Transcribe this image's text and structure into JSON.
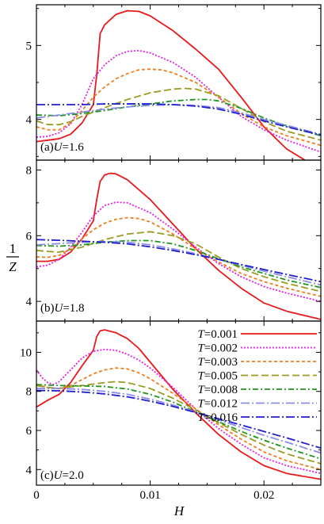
{
  "figure": {
    "xlabel": "H",
    "ylabel_numerator": "1",
    "ylabel_denominator": "Z"
  },
  "chart_data": [
    {
      "type": "line",
      "panel_label": "(a) U=1.6",
      "panel_prefix": "(a)",
      "panel_var": "U",
      "panel_value": "=1.6",
      "xlim": [
        0,
        0.025
      ],
      "ylim": [
        3.45,
        5.55
      ],
      "xticks": [
        0,
        0.01,
        0.02
      ],
      "xtick_labels": [
        "",
        "",
        ""
      ],
      "yticks": [
        4,
        5
      ],
      "ytick_labels": [
        "4",
        "5"
      ],
      "grid": false,
      "series": [
        {
          "name": "T=0.001",
          "color": "#e8191b",
          "dash": "",
          "x": [
            0,
            0.001,
            0.002,
            0.003,
            0.004,
            0.005,
            0.0053,
            0.0056,
            0.006,
            0.007,
            0.008,
            0.009,
            0.01,
            0.012,
            0.014,
            0.016,
            0.018,
            0.02,
            0.022,
            0.025
          ],
          "y": [
            3.7,
            3.72,
            3.74,
            3.8,
            3.95,
            4.2,
            4.6,
            5.16,
            5.28,
            5.42,
            5.47,
            5.46,
            5.4,
            5.2,
            4.95,
            4.68,
            4.3,
            3.9,
            3.6,
            3.32
          ]
        },
        {
          "name": "T=0.002",
          "color": "#e61ee6",
          "dash": "2,2",
          "x": [
            0,
            0.001,
            0.002,
            0.003,
            0.004,
            0.005,
            0.006,
            0.007,
            0.008,
            0.009,
            0.01,
            0.012,
            0.014,
            0.016,
            0.018,
            0.02,
            0.022,
            0.025
          ],
          "y": [
            3.76,
            3.77,
            3.82,
            3.94,
            4.2,
            4.55,
            4.74,
            4.86,
            4.92,
            4.93,
            4.9,
            4.77,
            4.57,
            4.3,
            4.04,
            3.86,
            3.72,
            3.56
          ]
        },
        {
          "name": "T=0.003",
          "color": "#f07d19",
          "dash": "4,3",
          "x": [
            0,
            0.001,
            0.002,
            0.003,
            0.004,
            0.005,
            0.006,
            0.007,
            0.008,
            0.009,
            0.01,
            0.011,
            0.012,
            0.014,
            0.016,
            0.018,
            0.02,
            0.022,
            0.025
          ],
          "y": [
            3.9,
            3.86,
            3.86,
            3.95,
            4.12,
            4.3,
            4.44,
            4.55,
            4.62,
            4.67,
            4.68,
            4.67,
            4.63,
            4.5,
            4.3,
            4.08,
            3.9,
            3.78,
            3.65
          ]
        },
        {
          "name": "T=0.005",
          "color": "#9b9b23",
          "dash": "9,4",
          "x": [
            0,
            0.001,
            0.002,
            0.003,
            0.004,
            0.006,
            0.008,
            0.01,
            0.012,
            0.013,
            0.014,
            0.016,
            0.018,
            0.02,
            0.022,
            0.025
          ],
          "y": [
            3.98,
            3.93,
            3.93,
            3.97,
            4.04,
            4.16,
            4.27,
            4.36,
            4.41,
            4.42,
            4.41,
            4.32,
            4.15,
            3.97,
            3.84,
            3.72
          ]
        },
        {
          "name": "T=0.008",
          "color": "#1e961e",
          "dash": "7,3,2,3",
          "x": [
            0,
            0.002,
            0.004,
            0.006,
            0.008,
            0.01,
            0.012,
            0.014,
            0.015,
            0.016,
            0.018,
            0.02,
            0.022,
            0.025
          ],
          "y": [
            4.06,
            4.05,
            4.08,
            4.12,
            4.17,
            4.21,
            4.25,
            4.27,
            4.27,
            4.25,
            4.15,
            4.02,
            3.91,
            3.78
          ]
        },
        {
          "name": "T=0.012",
          "color": "#8c8ce6",
          "dash": "11,3,2,3",
          "x": [
            0,
            0.002,
            0.004,
            0.006,
            0.008,
            0.01,
            0.012,
            0.014,
            0.016,
            0.018,
            0.02,
            0.022,
            0.025
          ],
          "y": [
            4.02,
            4.06,
            4.1,
            4.14,
            4.17,
            4.19,
            4.2,
            4.19,
            4.16,
            4.09,
            4.0,
            3.92,
            3.8
          ]
        },
        {
          "name": "T=0.016",
          "color": "#1e1ed2",
          "dash": "11,3,2,3",
          "x": [
            0,
            0.002,
            0.004,
            0.006,
            0.008,
            0.01,
            0.012,
            0.014,
            0.016,
            0.018,
            0.02,
            0.022,
            0.025
          ],
          "y": [
            4.2,
            4.2,
            4.2,
            4.21,
            4.21,
            4.21,
            4.2,
            4.18,
            4.14,
            4.07,
            3.98,
            3.9,
            3.79
          ]
        }
      ]
    },
    {
      "type": "line",
      "panel_label": "(b) U=1.8",
      "panel_prefix": "(b)",
      "panel_var": "U",
      "panel_value": "=1.8",
      "xlim": [
        0,
        0.025
      ],
      "ylim": [
        3.4,
        8.3
      ],
      "xticks": [
        0,
        0.01,
        0.02
      ],
      "xtick_labels": [
        "",
        "",
        ""
      ],
      "yticks": [
        4,
        6,
        8
      ],
      "ytick_labels": [
        "4",
        "6",
        "8"
      ],
      "grid": false,
      "series": [
        {
          "name": "T=0.001",
          "color": "#e8191b",
          "dash": "",
          "x": [
            0,
            0.001,
            0.002,
            0.003,
            0.004,
            0.005,
            0.0053,
            0.0056,
            0.006,
            0.0065,
            0.007,
            0.008,
            0.01,
            0.012,
            0.014,
            0.016,
            0.018,
            0.02,
            0.022,
            0.025
          ],
          "y": [
            5.22,
            5.22,
            5.28,
            5.5,
            5.9,
            6.45,
            7.1,
            7.65,
            7.85,
            7.9,
            7.88,
            7.7,
            7.1,
            6.35,
            5.6,
            4.95,
            4.4,
            3.95,
            3.7,
            3.45
          ]
        },
        {
          "name": "T=0.002",
          "color": "#e61ee6",
          "dash": "2,2",
          "x": [
            0,
            0.001,
            0.002,
            0.003,
            0.004,
            0.005,
            0.006,
            0.007,
            0.008,
            0.01,
            0.012,
            0.014,
            0.016,
            0.018,
            0.02,
            0.022,
            0.025
          ],
          "y": [
            5.05,
            5.1,
            5.28,
            5.65,
            6.1,
            6.6,
            6.92,
            7.02,
            7.0,
            6.7,
            6.2,
            5.65,
            5.15,
            4.75,
            4.45,
            4.25,
            4.0
          ]
        },
        {
          "name": "T=0.003",
          "color": "#f07d19",
          "dash": "4,3",
          "x": [
            0,
            0.001,
            0.002,
            0.003,
            0.004,
            0.005,
            0.006,
            0.007,
            0.008,
            0.009,
            0.01,
            0.012,
            0.014,
            0.016,
            0.018,
            0.02,
            0.022,
            0.025
          ],
          "y": [
            5.35,
            5.34,
            5.4,
            5.6,
            5.9,
            6.18,
            6.38,
            6.5,
            6.55,
            6.52,
            6.42,
            6.05,
            5.6,
            5.2,
            4.85,
            4.6,
            4.4,
            4.15
          ]
        },
        {
          "name": "T=0.005",
          "color": "#9b9b23",
          "dash": "9,4",
          "x": [
            0,
            0.001,
            0.002,
            0.004,
            0.006,
            0.008,
            0.01,
            0.012,
            0.014,
            0.016,
            0.018,
            0.02,
            0.022,
            0.025
          ],
          "y": [
            5.55,
            5.52,
            5.5,
            5.65,
            5.88,
            6.05,
            6.12,
            6.0,
            5.75,
            5.35,
            5.0,
            4.75,
            4.55,
            4.3
          ]
        },
        {
          "name": "T=0.008",
          "color": "#1e961e",
          "dash": "7,3,2,3",
          "x": [
            0,
            0.002,
            0.004,
            0.006,
            0.008,
            0.01,
            0.012,
            0.014,
            0.016,
            0.018,
            0.02,
            0.022,
            0.025
          ],
          "y": [
            5.7,
            5.68,
            5.72,
            5.8,
            5.85,
            5.85,
            5.75,
            5.55,
            5.3,
            5.05,
            4.85,
            4.65,
            4.42
          ]
        },
        {
          "name": "T=0.012",
          "color": "#8c8ce6",
          "dash": "11,3,2,3",
          "x": [
            0,
            0.002,
            0.004,
            0.006,
            0.008,
            0.01,
            0.012,
            0.014,
            0.016,
            0.018,
            0.02,
            0.022,
            0.025
          ],
          "y": [
            5.72,
            5.76,
            5.8,
            5.82,
            5.8,
            5.72,
            5.6,
            5.45,
            5.28,
            5.1,
            4.92,
            4.75,
            4.5
          ]
        },
        {
          "name": "T=0.016",
          "color": "#1e1ed2",
          "dash": "11,3,2,3",
          "x": [
            0,
            0.002,
            0.004,
            0.006,
            0.008,
            0.01,
            0.012,
            0.014,
            0.016,
            0.018,
            0.02,
            0.022,
            0.025
          ],
          "y": [
            5.88,
            5.86,
            5.83,
            5.8,
            5.75,
            5.66,
            5.55,
            5.42,
            5.28,
            5.12,
            4.97,
            4.82,
            4.6
          ]
        }
      ]
    },
    {
      "type": "line",
      "panel_label": "(c) U=2.0",
      "panel_prefix": "(c)",
      "panel_var": "U",
      "panel_value": "=2.0",
      "xlim": [
        0,
        0.025
      ],
      "ylim": [
        3.2,
        11.6
      ],
      "xticks": [
        0,
        0.01,
        0.02
      ],
      "xtick_labels": [
        "0",
        "0.01",
        "0.02"
      ],
      "yticks": [
        4,
        6,
        8,
        10
      ],
      "ytick_labels": [
        "4",
        "6",
        "8",
        "10"
      ],
      "grid": false,
      "legend_position": "top-right",
      "series": [
        {
          "name": "T=0.001",
          "color": "#e8191b",
          "dash": "",
          "x": [
            0,
            0.001,
            0.002,
            0.003,
            0.004,
            0.005,
            0.0053,
            0.0056,
            0.006,
            0.007,
            0.008,
            0.009,
            0.01,
            0.012,
            0.014,
            0.016,
            0.018,
            0.02,
            0.022,
            0.025
          ],
          "y": [
            7.2,
            7.55,
            7.85,
            8.45,
            9.3,
            10.1,
            10.8,
            11.1,
            11.15,
            11.0,
            10.7,
            10.2,
            9.5,
            8.1,
            6.9,
            5.8,
            4.9,
            4.2,
            3.8,
            3.5
          ]
        },
        {
          "name": "T=0.002",
          "color": "#e61ee6",
          "dash": "2,2",
          "x": [
            0,
            0.0005,
            0.001,
            0.0015,
            0.002,
            0.003,
            0.004,
            0.005,
            0.006,
            0.007,
            0.008,
            0.009,
            0.01,
            0.012,
            0.014,
            0.016,
            0.018,
            0.02,
            0.022,
            0.025
          ],
          "y": [
            9.1,
            8.7,
            8.45,
            8.35,
            8.5,
            9.1,
            9.7,
            10.05,
            10.15,
            10.1,
            9.9,
            9.6,
            9.2,
            8.2,
            7.1,
            6.1,
            5.3,
            4.6,
            4.2,
            3.8
          ]
        },
        {
          "name": "T=0.003",
          "color": "#f07d19",
          "dash": "4,3",
          "x": [
            0,
            0.001,
            0.002,
            0.003,
            0.004,
            0.005,
            0.006,
            0.007,
            0.008,
            0.009,
            0.01,
            0.012,
            0.014,
            0.016,
            0.018,
            0.02,
            0.022,
            0.025
          ],
          "y": [
            8.35,
            8.2,
            8.15,
            8.3,
            8.6,
            8.9,
            9.1,
            9.2,
            9.15,
            8.95,
            8.65,
            7.9,
            7.1,
            6.3,
            5.55,
            4.9,
            4.45,
            4.0
          ]
        },
        {
          "name": "T=0.005",
          "color": "#9b9b23",
          "dash": "9,4",
          "x": [
            0,
            0.001,
            0.002,
            0.004,
            0.006,
            0.007,
            0.008,
            0.01,
            0.012,
            0.014,
            0.016,
            0.018,
            0.02,
            0.022,
            0.025
          ],
          "y": [
            8.3,
            8.2,
            8.15,
            8.3,
            8.45,
            8.5,
            8.45,
            8.15,
            7.65,
            7.05,
            6.4,
            5.8,
            5.25,
            4.8,
            4.3
          ]
        },
        {
          "name": "T=0.008",
          "color": "#1e961e",
          "dash": "7,3,2,3",
          "x": [
            0,
            0.002,
            0.004,
            0.006,
            0.008,
            0.01,
            0.012,
            0.014,
            0.016,
            0.018,
            0.02,
            0.022,
            0.025
          ],
          "y": [
            8.35,
            8.3,
            8.28,
            8.25,
            8.12,
            7.85,
            7.45,
            6.95,
            6.45,
            5.95,
            5.5,
            5.1,
            4.55
          ]
        },
        {
          "name": "T=0.012",
          "color": "#8c8ce6",
          "dash": "11,3,2,3",
          "x": [
            0,
            0.002,
            0.004,
            0.006,
            0.008,
            0.01,
            0.012,
            0.014,
            0.016,
            0.018,
            0.02,
            0.022,
            0.025
          ],
          "y": [
            8.15,
            8.15,
            8.1,
            8.0,
            7.85,
            7.6,
            7.3,
            6.95,
            6.55,
            6.15,
            5.75,
            5.4,
            4.85
          ]
        },
        {
          "name": "T=0.016",
          "color": "#1e1ed2",
          "dash": "11,3,2,3",
          "x": [
            0,
            0.002,
            0.004,
            0.006,
            0.008,
            0.01,
            0.012,
            0.014,
            0.016,
            0.018,
            0.02,
            0.022,
            0.025
          ],
          "y": [
            8.05,
            8.03,
            7.97,
            7.87,
            7.72,
            7.5,
            7.23,
            6.92,
            6.6,
            6.28,
            5.95,
            5.62,
            5.1
          ]
        }
      ]
    }
  ]
}
